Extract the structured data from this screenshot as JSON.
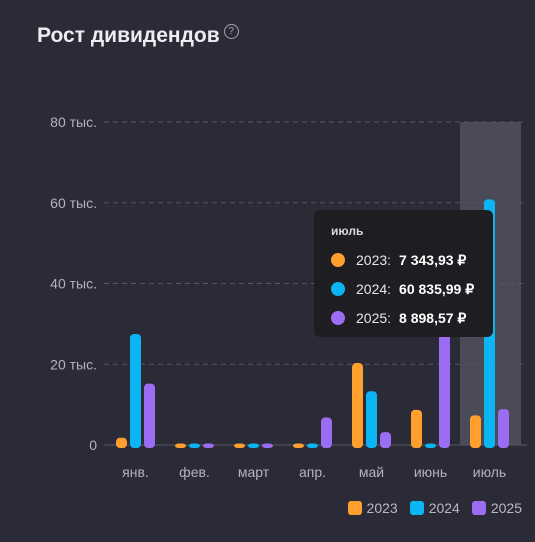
{
  "title": "Рост дивидендов",
  "help_icon": "?",
  "chart_data": {
    "type": "bar",
    "categories": [
      "янв.",
      "фев.",
      "март",
      "апр.",
      "май",
      "июнь",
      "июль"
    ],
    "series": [
      {
        "name": "2023",
        "color": "#ff9f2e",
        "values": [
          1800,
          200,
          0,
          300,
          20300,
          8700,
          7343.93
        ]
      },
      {
        "name": "2024",
        "color": "#0bb4f2",
        "values": [
          27500,
          0,
          200,
          200,
          13300,
          300,
          60835.99
        ]
      },
      {
        "name": "2025",
        "color": "#9b6df2",
        "values": [
          15200,
          0,
          0,
          6800,
          3200,
          28500,
          8898.57
        ]
      }
    ],
    "y_ticks": [
      0,
      20000,
      40000,
      60000,
      80000
    ],
    "y_tick_labels": [
      "0",
      "20 тыс.",
      "40 тыс.",
      "60 тыс.",
      "80 тыс."
    ],
    "ylim": [
      0,
      80000
    ],
    "grid": true,
    "highlighted_category": "июль"
  },
  "tooltip": {
    "title": "июль",
    "rows": [
      {
        "label": "2023:",
        "value": "7 343,93 ₽",
        "color": "#ff9f2e"
      },
      {
        "label": "2024:",
        "value": "60 835,99 ₽",
        "color": "#0bb4f2"
      },
      {
        "label": "2025:",
        "value": "8 898,57 ₽",
        "color": "#9b6df2"
      }
    ]
  },
  "legend": [
    {
      "label": "2023",
      "color": "#ff9f2e"
    },
    {
      "label": "2024",
      "color": "#0bb4f2"
    },
    {
      "label": "2025",
      "color": "#9b6df2"
    }
  ]
}
